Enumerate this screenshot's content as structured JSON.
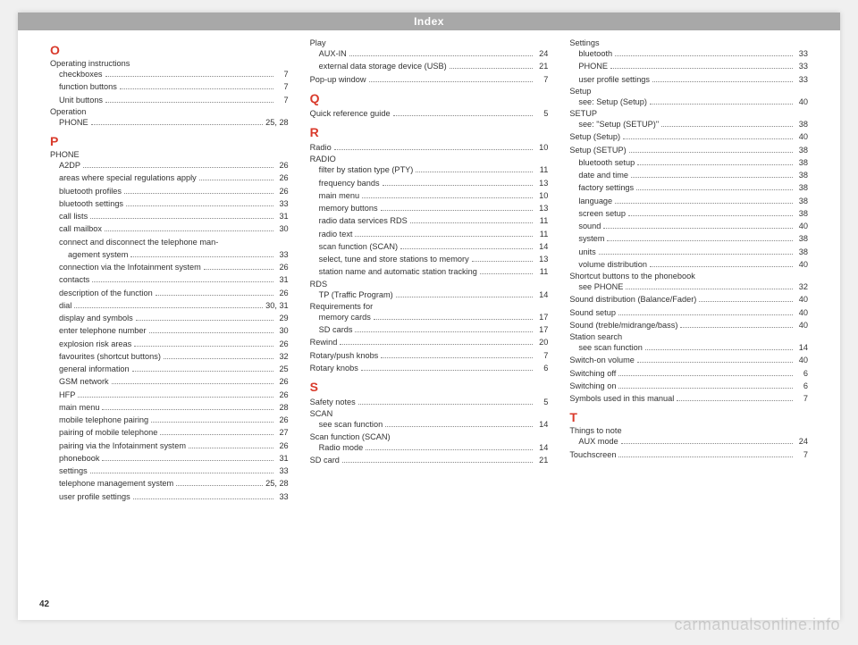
{
  "header_title": "Index",
  "page_number": "42",
  "watermark": "carmanualsonline.info",
  "columns": [
    {
      "blocks": [
        {
          "type": "letter",
          "text": "O"
        },
        {
          "type": "heading",
          "text": "Operating instructions"
        },
        {
          "type": "sub",
          "label": "checkboxes",
          "page": "7"
        },
        {
          "type": "sub",
          "label": "function buttons",
          "page": "7"
        },
        {
          "type": "sub",
          "label": "Unit buttons",
          "page": "7"
        },
        {
          "type": "heading",
          "text": "Operation"
        },
        {
          "type": "sub",
          "label": "PHONE",
          "page": "25, 28"
        },
        {
          "type": "letter",
          "text": "P"
        },
        {
          "type": "heading",
          "text": "PHONE"
        },
        {
          "type": "sub",
          "label": "A2DP",
          "page": "26"
        },
        {
          "type": "sub",
          "label": "areas where special regulations apply",
          "page": "26"
        },
        {
          "type": "sub",
          "label": "bluetooth profiles",
          "page": "26"
        },
        {
          "type": "sub",
          "label": "bluetooth settings",
          "page": "33"
        },
        {
          "type": "sub",
          "label": "call lists",
          "page": "31"
        },
        {
          "type": "sub",
          "label": "call mailbox",
          "page": "30"
        },
        {
          "type": "sub-nolead",
          "label": "connect and disconnect the telephone man-"
        },
        {
          "type": "sub2",
          "label": "agement system",
          "page": "33"
        },
        {
          "type": "sub",
          "label": "connection via the Infotainment system",
          "page": "26"
        },
        {
          "type": "sub",
          "label": "contacts",
          "page": "31"
        },
        {
          "type": "sub",
          "label": "description of the function",
          "page": "26"
        },
        {
          "type": "sub",
          "label": "dial",
          "page": "30, 31"
        },
        {
          "type": "sub",
          "label": "display and symbols",
          "page": "29"
        },
        {
          "type": "sub",
          "label": "enter telephone number",
          "page": "30"
        },
        {
          "type": "sub",
          "label": "explosion risk areas",
          "page": "26"
        },
        {
          "type": "sub",
          "label": "favourites (shortcut buttons)",
          "page": "32"
        },
        {
          "type": "sub",
          "label": "general information",
          "page": "25"
        },
        {
          "type": "sub",
          "label": "GSM network",
          "page": "26"
        },
        {
          "type": "sub",
          "label": "HFP",
          "page": "26"
        },
        {
          "type": "sub",
          "label": "main menu",
          "page": "28"
        },
        {
          "type": "sub",
          "label": "mobile telephone pairing",
          "page": "26"
        },
        {
          "type": "sub",
          "label": "pairing of mobile telephone",
          "page": "27"
        },
        {
          "type": "sub",
          "label": "pairing via the Infotainment system",
          "page": "26"
        },
        {
          "type": "sub",
          "label": "phonebook",
          "page": "31"
        },
        {
          "type": "sub",
          "label": "settings",
          "page": "33"
        },
        {
          "type": "sub",
          "label": "telephone management system",
          "page": "25, 28"
        },
        {
          "type": "sub",
          "label": "user profile settings",
          "page": "33"
        }
      ]
    },
    {
      "blocks": [
        {
          "type": "heading",
          "text": "Play"
        },
        {
          "type": "sub",
          "label": "AUX-IN",
          "page": "24"
        },
        {
          "type": "sub",
          "label": "external data storage device (USB)",
          "page": "21"
        },
        {
          "type": "entry",
          "label": "Pop-up window",
          "page": "7"
        },
        {
          "type": "letter",
          "text": "Q"
        },
        {
          "type": "entry",
          "label": "Quick reference guide",
          "page": "5"
        },
        {
          "type": "letter",
          "text": "R"
        },
        {
          "type": "entry",
          "label": "Radio",
          "page": "10"
        },
        {
          "type": "heading",
          "text": "RADIO"
        },
        {
          "type": "sub",
          "label": "filter by station type (PTY)",
          "page": "11"
        },
        {
          "type": "sub",
          "label": "frequency bands",
          "page": "13"
        },
        {
          "type": "sub",
          "label": "main menu",
          "page": "10"
        },
        {
          "type": "sub",
          "label": "memory buttons",
          "page": "13"
        },
        {
          "type": "sub",
          "label": "radio data services RDS",
          "page": "11"
        },
        {
          "type": "sub",
          "label": "radio text",
          "page": "11"
        },
        {
          "type": "sub",
          "label": "scan function (SCAN)",
          "page": "14"
        },
        {
          "type": "sub",
          "label": "select, tune and store stations to memory",
          "page": "13"
        },
        {
          "type": "sub",
          "label": "station name and automatic station tracking",
          "page": "11"
        },
        {
          "type": "heading",
          "text": "RDS"
        },
        {
          "type": "sub",
          "label": "TP (Traffic Program)",
          "page": "14"
        },
        {
          "type": "heading",
          "text": "Requirements for"
        },
        {
          "type": "sub",
          "label": "memory cards",
          "page": "17"
        },
        {
          "type": "sub",
          "label": "SD cards",
          "page": "17"
        },
        {
          "type": "entry",
          "label": "Rewind",
          "page": "20"
        },
        {
          "type": "entry",
          "label": "Rotary/push knobs",
          "page": "7"
        },
        {
          "type": "entry",
          "label": "Rotary knobs",
          "page": "6"
        },
        {
          "type": "letter",
          "text": "S"
        },
        {
          "type": "entry",
          "label": "Safety notes",
          "page": "5"
        },
        {
          "type": "heading",
          "text": "SCAN"
        },
        {
          "type": "sub",
          "label": "see scan function",
          "page": "14"
        },
        {
          "type": "heading",
          "text": "Scan function (SCAN)"
        },
        {
          "type": "sub",
          "label": "Radio mode",
          "page": "14"
        },
        {
          "type": "entry",
          "label": "SD card",
          "page": "21"
        }
      ]
    },
    {
      "blocks": [
        {
          "type": "heading",
          "text": "Settings"
        },
        {
          "type": "sub",
          "label": "bluetooth",
          "page": "33"
        },
        {
          "type": "sub",
          "label": "PHONE",
          "page": "33"
        },
        {
          "type": "sub",
          "label": "user profile settings",
          "page": "33"
        },
        {
          "type": "heading",
          "text": "Setup"
        },
        {
          "type": "sub",
          "label": "see: Setup (Setup)",
          "page": "40"
        },
        {
          "type": "heading",
          "text": "SETUP"
        },
        {
          "type": "sub",
          "label": "see: \"Setup (SETUP)\"",
          "page": "38"
        },
        {
          "type": "entry",
          "label": "Setup (Setup)",
          "page": "40"
        },
        {
          "type": "entry",
          "label": "Setup (SETUP)",
          "page": "38"
        },
        {
          "type": "sub",
          "label": "bluetooth setup",
          "page": "38"
        },
        {
          "type": "sub",
          "label": "date and time",
          "page": "38"
        },
        {
          "type": "sub",
          "label": "factory settings",
          "page": "38"
        },
        {
          "type": "sub",
          "label": "language",
          "page": "38"
        },
        {
          "type": "sub",
          "label": "screen setup",
          "page": "38"
        },
        {
          "type": "sub",
          "label": "sound",
          "page": "40"
        },
        {
          "type": "sub",
          "label": "system",
          "page": "38"
        },
        {
          "type": "sub",
          "label": "units",
          "page": "38"
        },
        {
          "type": "sub",
          "label": "volume distribution",
          "page": "40"
        },
        {
          "type": "heading",
          "text": "Shortcut buttons to the phonebook"
        },
        {
          "type": "sub",
          "label": "see PHONE",
          "page": "32"
        },
        {
          "type": "entry",
          "label": "Sound distribution (Balance/Fader)",
          "page": "40"
        },
        {
          "type": "entry",
          "label": "Sound setup",
          "page": "40"
        },
        {
          "type": "entry",
          "label": "Sound (treble/midrange/bass)",
          "page": "40"
        },
        {
          "type": "heading",
          "text": "Station search"
        },
        {
          "type": "sub",
          "label": "see scan function",
          "page": "14"
        },
        {
          "type": "entry",
          "label": "Switch-on volume",
          "page": "40"
        },
        {
          "type": "entry",
          "label": "Switching off",
          "page": "6"
        },
        {
          "type": "entry",
          "label": "Switching on",
          "page": "6"
        },
        {
          "type": "entry",
          "label": "Symbols used in this manual",
          "page": "7"
        },
        {
          "type": "letter",
          "text": "T"
        },
        {
          "type": "heading",
          "text": "Things to note"
        },
        {
          "type": "sub",
          "label": "AUX mode",
          "page": "24"
        },
        {
          "type": "entry",
          "label": "Touchscreen",
          "page": "7"
        }
      ]
    }
  ]
}
